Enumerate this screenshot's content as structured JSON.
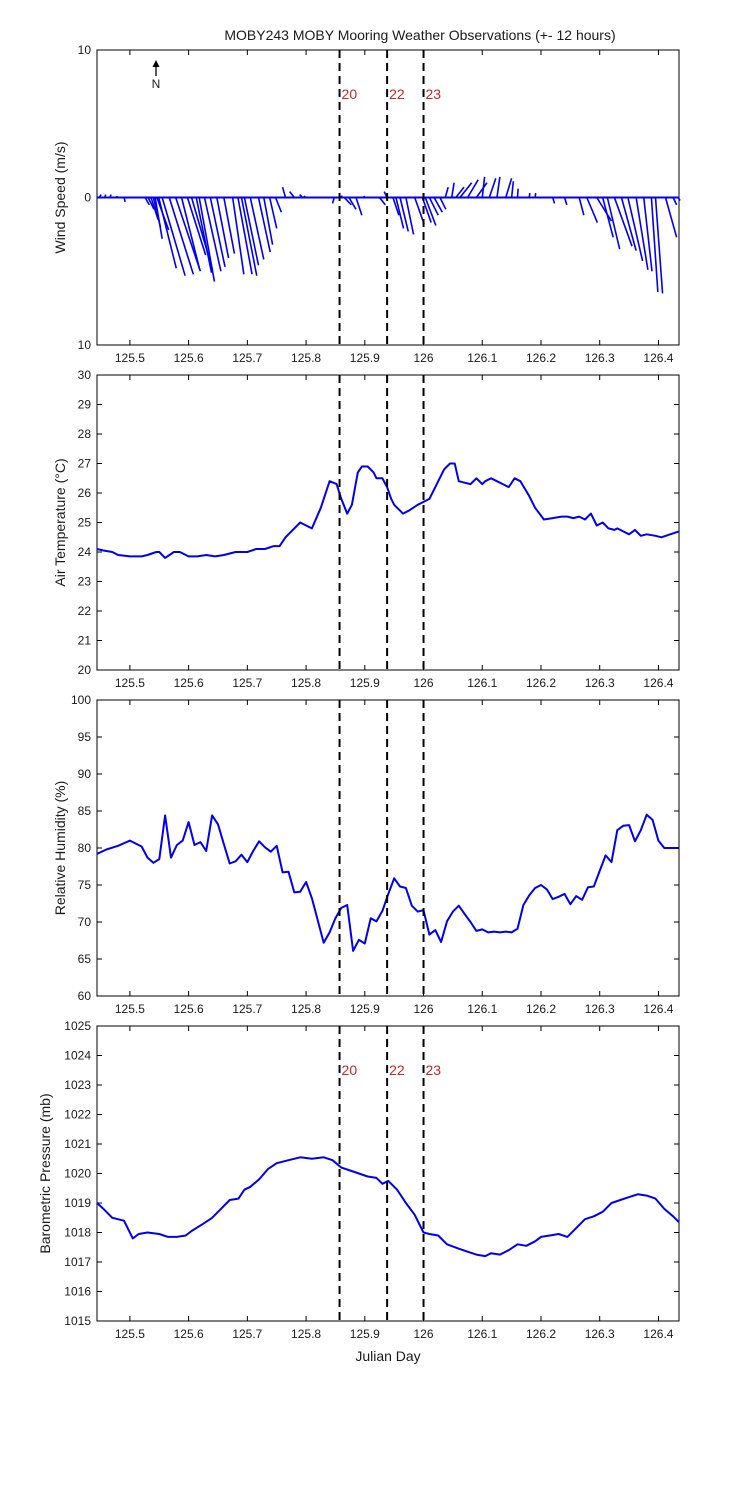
{
  "title": "MOBY243 MOBY Mooring Weather Observations (+- 12 hours)",
  "colors": {
    "line": "#0000ee",
    "marker_text": "#c0282d",
    "axes": "#000000"
  },
  "north_arrow_label": "N",
  "chart_data": [
    {
      "type": "vector",
      "name": "wind",
      "ylabel": "Wind Speed (m/s)",
      "xlim": [
        125.444,
        126.435
      ],
      "ylim": [
        -10,
        10
      ],
      "ytick_labels": [
        {
          "value": 10,
          "label": "10"
        },
        {
          "value": 0,
          "label": "0"
        },
        {
          "value": -10,
          "label": "10"
        }
      ],
      "xticks": [
        125.5,
        125.6,
        125.7,
        125.8,
        125.9,
        126,
        126.1,
        126.2,
        126.3,
        126.4
      ],
      "xtick_labels": [
        "125.5",
        "125.6",
        "125.7",
        "125.8",
        "125.9",
        "126",
        "126.1",
        "126.2",
        "126.3",
        "126.4"
      ],
      "markers": [
        {
          "x": 125.857,
          "label": "20"
        },
        {
          "x": 125.938,
          "label": "22"
        },
        {
          "x": 126.0,
          "label": "23"
        }
      ],
      "vectors_note": "dx in day-units, dy in m/s",
      "vectors": [
        [
          125.448,
          0.003,
          0.2
        ],
        [
          125.457,
          0.002,
          0.2
        ],
        [
          125.466,
          0.002,
          0.2
        ],
        [
          125.478,
          0.0,
          0.1
        ],
        [
          125.49,
          0.002,
          -0.3
        ],
        [
          125.526,
          0.007,
          -0.5
        ],
        [
          125.531,
          0.01,
          -0.8
        ],
        [
          125.536,
          0.012,
          -1.5
        ],
        [
          125.54,
          0.012,
          -2.0
        ],
        [
          125.543,
          0.012,
          -2.8
        ],
        [
          125.546,
          0.02,
          -2.2
        ],
        [
          125.549,
          0.03,
          -4.8
        ],
        [
          125.555,
          0.039,
          -5.3
        ],
        [
          125.567,
          0.041,
          -5.2
        ],
        [
          125.578,
          0.042,
          -5.0
        ],
        [
          125.588,
          0.031,
          -4.9
        ],
        [
          125.598,
          0.031,
          -3.9
        ],
        [
          125.605,
          0.035,
          -4.8
        ],
        [
          125.613,
          0.026,
          -5.1
        ],
        [
          125.618,
          0.026,
          -5.7
        ],
        [
          125.627,
          0.028,
          -5.0
        ],
        [
          125.637,
          0.025,
          -4.7
        ],
        [
          125.648,
          0.02,
          -4.1
        ],
        [
          125.66,
          0.018,
          -3.8
        ],
        [
          125.675,
          0.019,
          -5.2
        ],
        [
          125.684,
          0.024,
          -5.2
        ],
        [
          125.69,
          0.026,
          -5.3
        ],
        [
          125.695,
          0.024,
          -4.6
        ],
        [
          125.705,
          0.023,
          -4.2
        ],
        [
          125.719,
          0.02,
          -3.7
        ],
        [
          125.728,
          0.015,
          -3.2
        ],
        [
          125.738,
          0.012,
          -2.1
        ],
        [
          125.748,
          0.01,
          -1.0
        ],
        [
          125.765,
          -0.005,
          0.7
        ],
        [
          125.78,
          -0.008,
          0.4
        ],
        [
          125.794,
          -0.005,
          0.2
        ],
        [
          125.8,
          -0.004,
          0.1
        ],
        [
          125.848,
          -0.003,
          -0.4
        ],
        [
          125.857,
          0.005,
          0.1
        ],
        [
          125.865,
          0.012,
          -0.5
        ],
        [
          125.873,
          0.012,
          -0.8
        ],
        [
          125.885,
          0.01,
          -1.2
        ],
        [
          125.9,
          -0.002,
          0.1
        ],
        [
          125.925,
          0.01,
          -0.5
        ],
        [
          125.938,
          -0.005,
          0.4
        ],
        [
          125.948,
          0.01,
          -1.2
        ],
        [
          125.953,
          0.013,
          -2.1
        ],
        [
          125.96,
          0.014,
          -2.3
        ],
        [
          125.97,
          0.013,
          -2.5
        ],
        [
          125.985,
          0.016,
          -1.8
        ],
        [
          125.998,
          0.015,
          -1.7
        ],
        [
          126.003,
          0.018,
          -1.9
        ],
        [
          126.01,
          0.015,
          -1.2
        ],
        [
          126.018,
          0.014,
          -1.0
        ],
        [
          126.028,
          0.01,
          -0.8
        ],
        [
          126.037,
          0.005,
          0.7
        ],
        [
          126.048,
          0.004,
          1.0
        ],
        [
          126.055,
          0.014,
          0.7
        ],
        [
          126.062,
          0.02,
          1.0
        ],
        [
          126.075,
          0.018,
          1.2
        ],
        [
          126.09,
          0.018,
          1.0
        ],
        [
          126.1,
          0.004,
          1.4
        ],
        [
          126.112,
          0.011,
          1.3
        ],
        [
          126.125,
          0.005,
          1.4
        ],
        [
          126.14,
          0.01,
          1.3
        ],
        [
          126.15,
          0.003,
          1.1
        ],
        [
          126.16,
          0.001,
          0.6
        ],
        [
          126.18,
          0.001,
          0.3
        ],
        [
          126.19,
          0.001,
          0.3
        ],
        [
          126.22,
          0.003,
          -0.4
        ],
        [
          126.24,
          0.004,
          -0.5
        ],
        [
          126.265,
          0.008,
          -1.2
        ],
        [
          126.278,
          0.018,
          -1.7
        ],
        [
          126.295,
          0.025,
          -1.6
        ],
        [
          126.305,
          0.018,
          -2.7
        ],
        [
          126.313,
          0.021,
          -3.5
        ],
        [
          126.325,
          0.03,
          -3.3
        ],
        [
          126.337,
          0.025,
          -3.6
        ],
        [
          126.348,
          0.025,
          -4.3
        ],
        [
          126.362,
          0.02,
          -4.9
        ],
        [
          126.375,
          0.014,
          -5.0
        ],
        [
          126.388,
          0.011,
          -6.4
        ],
        [
          126.395,
          0.012,
          -6.5
        ],
        [
          126.412,
          0.019,
          -2.7
        ],
        [
          126.425,
          0.006,
          -0.5
        ],
        [
          126.433,
          0.004,
          -0.2
        ]
      ]
    },
    {
      "type": "line",
      "name": "air_temperature",
      "ylabel": "Air Temperature (°C)",
      "xlim": [
        125.444,
        126.435
      ],
      "ylim": [
        20,
        30
      ],
      "yticks": [
        20,
        21,
        22,
        23,
        24,
        25,
        26,
        27,
        28,
        29,
        30
      ],
      "ytick_labels": [
        "20",
        "21",
        "22",
        "23",
        "24",
        "25",
        "26",
        "27",
        "28",
        "29",
        "30"
      ],
      "xticks": [
        125.5,
        125.6,
        125.7,
        125.8,
        125.9,
        126,
        126.1,
        126.2,
        126.3,
        126.4
      ],
      "xtick_labels": [
        "125.5",
        "125.6",
        "125.7",
        "125.8",
        "125.9",
        "126",
        "126.1",
        "126.2",
        "126.3",
        "126.4"
      ],
      "markers": [
        {
          "x": 125.857
        },
        {
          "x": 125.938
        },
        {
          "x": 126.0
        }
      ],
      "x": [
        125.444,
        125.455,
        125.47,
        125.48,
        125.5,
        125.52,
        125.53,
        125.545,
        125.55,
        125.56,
        125.575,
        125.585,
        125.6,
        125.615,
        125.63,
        125.645,
        125.66,
        125.68,
        125.7,
        125.715,
        125.73,
        125.745,
        125.755,
        125.765,
        125.78,
        125.79,
        125.8,
        125.81,
        125.825,
        125.84,
        125.852,
        125.86,
        125.87,
        125.878,
        125.888,
        125.895,
        125.905,
        125.915,
        125.92,
        125.93,
        125.938,
        125.945,
        125.95,
        125.965,
        125.975,
        125.99,
        126.0,
        126.01,
        126.02,
        126.035,
        126.045,
        126.053,
        126.06,
        126.07,
        126.08,
        126.09,
        126.1,
        126.105,
        126.115,
        126.125,
        126.135,
        126.145,
        126.155,
        126.165,
        126.18,
        126.19,
        126.205,
        126.22,
        126.235,
        126.245,
        126.255,
        126.265,
        126.275,
        126.285,
        126.295,
        126.305,
        126.315,
        126.325,
        126.33,
        126.34,
        126.35,
        126.36,
        126.37,
        126.38,
        126.395,
        126.405,
        126.42,
        126.435
      ],
      "y": [
        24.1,
        24.05,
        24.0,
        23.9,
        23.85,
        23.85,
        23.9,
        24.0,
        24.0,
        23.8,
        24.0,
        24.0,
        23.85,
        23.85,
        23.9,
        23.85,
        23.9,
        24.0,
        24.0,
        24.1,
        24.1,
        24.2,
        24.2,
        24.5,
        24.8,
        25.0,
        24.9,
        24.8,
        25.5,
        26.4,
        26.3,
        25.8,
        25.3,
        25.6,
        26.7,
        26.9,
        26.9,
        26.7,
        26.5,
        26.5,
        26.2,
        25.8,
        25.6,
        25.3,
        25.4,
        25.6,
        25.7,
        25.8,
        26.2,
        26.8,
        27.0,
        27.0,
        26.4,
        26.35,
        26.3,
        26.5,
        26.3,
        26.4,
        26.5,
        26.4,
        26.3,
        26.2,
        26.5,
        26.4,
        25.9,
        25.5,
        25.1,
        25.15,
        25.2,
        25.2,
        25.15,
        25.2,
        25.1,
        25.3,
        24.9,
        25.0,
        24.8,
        24.75,
        24.8,
        24.7,
        24.6,
        24.75,
        24.55,
        24.6,
        24.55,
        24.5,
        24.6,
        24.7
      ]
    },
    {
      "type": "line",
      "name": "relative_humidity",
      "ylabel": "Relative Humidity (%)",
      "xlim": [
        125.444,
        126.435
      ],
      "ylim": [
        60,
        100
      ],
      "yticks": [
        60,
        65,
        70,
        75,
        80,
        85,
        90,
        95,
        100
      ],
      "ytick_labels": [
        "60",
        "65",
        "70",
        "75",
        "80",
        "85",
        "90",
        "95",
        "100"
      ],
      "xticks": [
        125.5,
        125.6,
        125.7,
        125.8,
        125.9,
        126,
        126.1,
        126.2,
        126.3,
        126.4
      ],
      "xtick_labels": [
        "125.5",
        "125.6",
        "125.7",
        "125.8",
        "125.9",
        "126",
        "126.1",
        "126.2",
        "126.3",
        "126.4"
      ],
      "markers": [
        {
          "x": 125.857
        },
        {
          "x": 125.938
        },
        {
          "x": 126.0
        }
      ],
      "x": [
        125.444,
        125.46,
        125.48,
        125.5,
        125.52,
        125.53,
        125.54,
        125.55,
        125.56,
        125.57,
        125.58,
        125.59,
        125.6,
        125.61,
        125.62,
        125.63,
        125.64,
        125.65,
        125.66,
        125.67,
        125.68,
        125.69,
        125.7,
        125.71,
        125.72,
        125.73,
        125.74,
        125.75,
        125.76,
        125.77,
        125.78,
        125.79,
        125.8,
        125.81,
        125.82,
        125.83,
        125.84,
        125.85,
        125.86,
        125.87,
        125.88,
        125.89,
        125.9,
        125.91,
        125.92,
        125.93,
        125.94,
        125.95,
        125.96,
        125.97,
        125.98,
        125.99,
        126.0,
        126.01,
        126.02,
        126.03,
        126.04,
        126.05,
        126.06,
        126.07,
        126.08,
        126.09,
        126.1,
        126.11,
        126.12,
        126.13,
        126.14,
        126.15,
        126.16,
        126.17,
        126.18,
        126.19,
        126.2,
        126.21,
        126.22,
        126.23,
        126.24,
        126.25,
        126.26,
        126.27,
        126.28,
        126.29,
        126.3,
        126.31,
        126.32,
        126.33,
        126.34,
        126.35,
        126.36,
        126.37,
        126.38,
        126.39,
        126.4,
        126.41,
        126.42,
        126.435
      ],
      "y": [
        79.2,
        79.8,
        80.3,
        81.0,
        80.2,
        78.7,
        78.0,
        78.5,
        84.4,
        78.7,
        80.4,
        81.0,
        83.5,
        80.4,
        80.8,
        79.6,
        84.4,
        83.2,
        80.5,
        77.9,
        78.2,
        79.1,
        78.1,
        79.6,
        80.9,
        80.1,
        79.5,
        80.3,
        76.7,
        76.8,
        74.0,
        74.1,
        75.4,
        73.2,
        70.2,
        67.2,
        68.6,
        70.5,
        71.9,
        72.3,
        66.1,
        67.6,
        67.1,
        70.5,
        70.1,
        71.5,
        73.8,
        75.9,
        74.8,
        74.6,
        72.2,
        71.4,
        71.6,
        68.3,
        68.9,
        67.3,
        70.1,
        71.4,
        72.2,
        71.1,
        70.0,
        68.8,
        69.0,
        68.6,
        68.7,
        68.6,
        68.7,
        68.6,
        69.1,
        72.3,
        73.6,
        74.6,
        75.0,
        74.4,
        73.1,
        73.4,
        73.8,
        72.4,
        73.5,
        73.0,
        74.7,
        74.8,
        76.9,
        79.0,
        78.1,
        82.4,
        83.0,
        83.1,
        80.9,
        82.4,
        84.5,
        83.8,
        81.0,
        80.0,
        80.0,
        80.0
      ]
    },
    {
      "type": "line",
      "name": "barometric_pressure",
      "ylabel": "Barometric Pressure (mb)",
      "xlabel": "Julian Day",
      "xlim": [
        125.444,
        126.435
      ],
      "ylim": [
        1015,
        1025
      ],
      "yticks": [
        1015,
        1016,
        1017,
        1018,
        1019,
        1020,
        1021,
        1022,
        1023,
        1024,
        1025
      ],
      "ytick_labels": [
        "1015",
        "1016",
        "1017",
        "1018",
        "1019",
        "1020",
        "1021",
        "1022",
        "1023",
        "1024",
        "1025"
      ],
      "xticks": [
        125.5,
        125.6,
        125.7,
        125.8,
        125.9,
        126,
        126.1,
        126.2,
        126.3,
        126.4
      ],
      "xtick_labels": [
        "125.5",
        "125.6",
        "125.7",
        "125.8",
        "125.9",
        "126",
        "126.1",
        "126.2",
        "126.3",
        "126.4"
      ],
      "markers": [
        {
          "x": 125.857,
          "label": "20"
        },
        {
          "x": 125.938,
          "label": "22"
        },
        {
          "x": 126.0,
          "label": "23"
        }
      ],
      "x": [
        125.444,
        125.455,
        125.47,
        125.49,
        125.505,
        125.515,
        125.53,
        125.55,
        125.565,
        125.58,
        125.595,
        125.605,
        125.625,
        125.64,
        125.655,
        125.67,
        125.685,
        125.695,
        125.705,
        125.72,
        125.735,
        125.75,
        125.77,
        125.79,
        125.81,
        125.83,
        125.845,
        125.86,
        125.875,
        125.89,
        125.905,
        125.92,
        125.93,
        125.94,
        125.955,
        125.97,
        125.985,
        126.0,
        126.01,
        126.025,
        126.04,
        126.06,
        126.075,
        126.09,
        126.105,
        126.115,
        126.13,
        126.145,
        126.16,
        126.175,
        126.19,
        126.2,
        126.215,
        126.23,
        126.245,
        126.26,
        126.275,
        126.29,
        126.305,
        126.32,
        126.335,
        126.35,
        126.365,
        126.38,
        126.395,
        126.41,
        126.425,
        126.435
      ],
      "y": [
        1019.0,
        1018.8,
        1018.5,
        1018.4,
        1017.8,
        1017.95,
        1018.0,
        1017.95,
        1017.85,
        1017.85,
        1017.9,
        1018.05,
        1018.3,
        1018.5,
        1018.8,
        1019.1,
        1019.15,
        1019.45,
        1019.55,
        1019.8,
        1020.15,
        1020.35,
        1020.45,
        1020.55,
        1020.5,
        1020.55,
        1020.45,
        1020.2,
        1020.1,
        1020.0,
        1019.9,
        1019.85,
        1019.65,
        1019.75,
        1019.45,
        1019.0,
        1018.6,
        1018.0,
        1017.95,
        1017.9,
        1017.6,
        1017.45,
        1017.35,
        1017.25,
        1017.2,
        1017.3,
        1017.25,
        1017.4,
        1017.6,
        1017.55,
        1017.7,
        1017.85,
        1017.9,
        1017.95,
        1017.85,
        1018.15,
        1018.45,
        1018.55,
        1018.7,
        1019.0,
        1019.1,
        1019.2,
        1019.3,
        1019.25,
        1019.15,
        1018.8,
        1018.55,
        1018.35
      ]
    }
  ]
}
